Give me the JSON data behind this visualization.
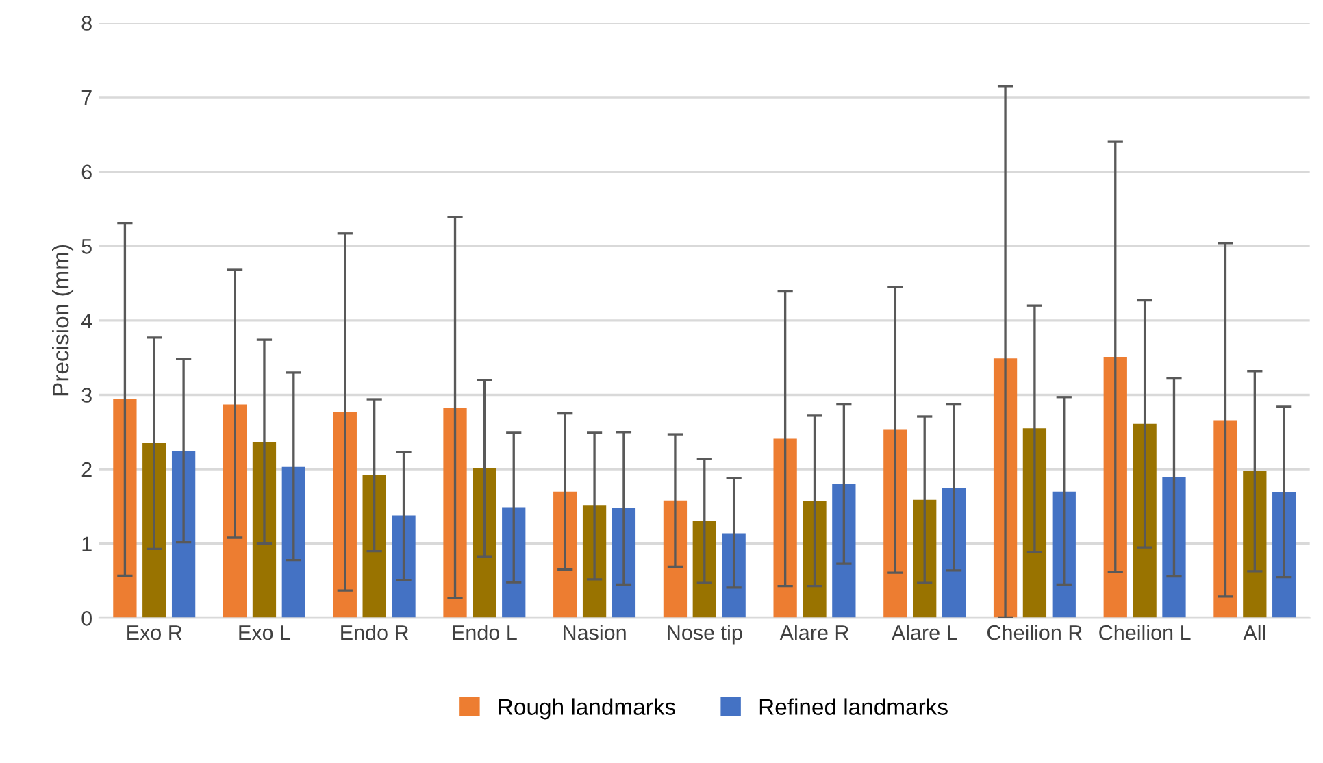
{
  "chart_data": {
    "type": "bar",
    "ylabel": "Precision (mm)",
    "categories": [
      "Exo R",
      "Exo L",
      "Endo R",
      "Endo L",
      "Nasion",
      "Nose tip",
      "Alare R",
      "Alare L",
      "Cheilion R",
      "Cheilion L",
      "All"
    ],
    "series": [
      {
        "name": "Rough landmarks",
        "color": "#ed7d31",
        "values": [
          2.95,
          2.87,
          2.77,
          2.83,
          1.7,
          1.58,
          2.41,
          2.53,
          3.49,
          3.51,
          2.66
        ],
        "errors": [
          [
            0.57,
            5.31
          ],
          [
            1.08,
            4.68
          ],
          [
            0.37,
            5.17
          ],
          [
            0.27,
            5.39
          ],
          [
            0.65,
            2.75
          ],
          [
            0.69,
            2.47
          ],
          [
            0.43,
            4.39
          ],
          [
            0.61,
            4.45
          ],
          [
            0,
            7.15
          ],
          [
            0.62,
            6.4
          ],
          [
            0.29,
            5.04
          ]
        ]
      },
      {
        "color": "#997300",
        "values": [
          2.35,
          2.37,
          1.92,
          2.01,
          1.51,
          1.31,
          1.57,
          1.59,
          2.55,
          2.61,
          1.98
        ],
        "errors": [
          [
            0.93,
            3.77
          ],
          [
            1.0,
            3.74
          ],
          [
            0.9,
            2.94
          ],
          [
            0.82,
            3.2
          ],
          [
            0.52,
            2.49
          ],
          [
            0.47,
            2.14
          ],
          [
            0.43,
            2.72
          ],
          [
            0.47,
            2.71
          ],
          [
            0.89,
            4.2
          ],
          [
            0.95,
            4.27
          ],
          [
            0.63,
            3.32
          ]
        ]
      },
      {
        "name": "Refined landmarks",
        "color": "#4472c4",
        "values": [
          2.25,
          2.03,
          1.38,
          1.49,
          1.48,
          1.14,
          1.8,
          1.75,
          1.7,
          1.89,
          1.69
        ],
        "errors": [
          [
            1.02,
            3.48
          ],
          [
            0.78,
            3.3
          ],
          [
            0.51,
            2.23
          ],
          [
            0.48,
            2.49
          ],
          [
            0.45,
            2.5
          ],
          [
            0.41,
            1.88
          ],
          [
            0.73,
            2.87
          ],
          [
            0.64,
            2.87
          ],
          [
            0.45,
            2.97
          ],
          [
            0.56,
            3.22
          ],
          [
            0.55,
            2.84
          ]
        ]
      }
    ],
    "ylim": [
      0,
      8
    ],
    "yticks": [
      0,
      1,
      2,
      3,
      4,
      5,
      6,
      7,
      8
    ],
    "grid": "y",
    "legend": "bottom"
  }
}
